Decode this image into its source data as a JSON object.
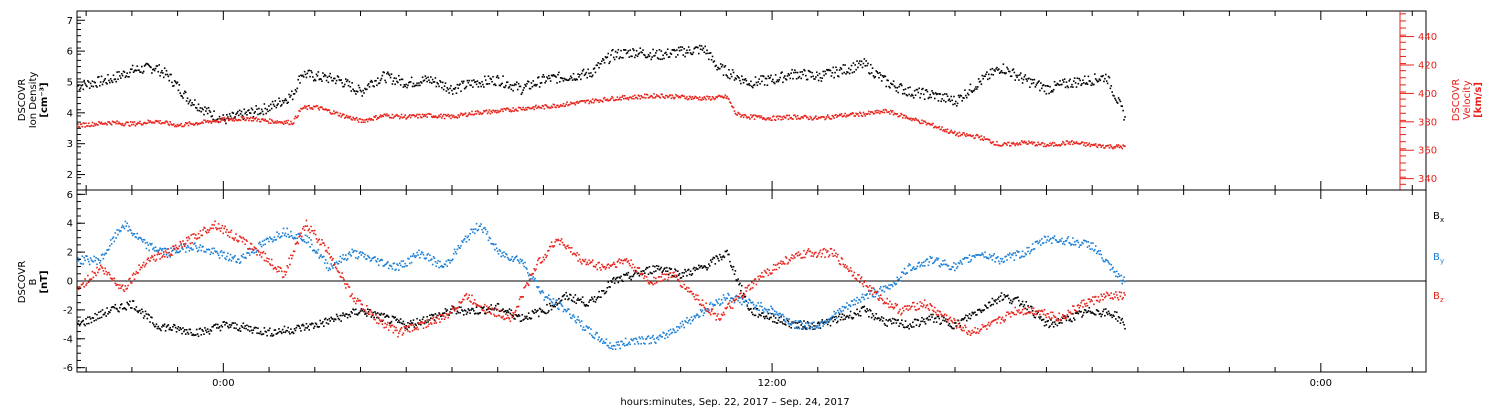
{
  "xaxis": {
    "title": "hours:minutes, Sep. 22, 2017 – Sep. 24, 2017",
    "range_hours": [
      -3.2,
      26.3
    ],
    "major_ticks": [
      {
        "hour": 0,
        "label": "0:00"
      },
      {
        "hour": 12,
        "label": "12:00"
      },
      {
        "hour": 24,
        "label": "0:00"
      }
    ],
    "minor_tick_step_hours": 1
  },
  "colors": {
    "black": "#000000",
    "blue": "#1c7fd6",
    "red": "#e8231b"
  },
  "chart_data": [
    {
      "type": "scatter",
      "panel": "top",
      "ylabel_lines": [
        "DSCOVR",
        "Ion Density"
      ],
      "yunit": "[cm⁻³]",
      "ylim": [
        1.5,
        7.3
      ],
      "yticks": [
        2,
        3,
        4,
        5,
        6,
        7
      ],
      "y2label_lines": [
        "DSCOVR",
        "Velocity"
      ],
      "y2unit": "[km/s]",
      "y2lim": [
        332,
        458
      ],
      "y2ticks": [
        340,
        360,
        380,
        400,
        420,
        440
      ],
      "series": [
        {
          "axis": "left",
          "color": "#000000",
          "x": [
            -3.2,
            -2.5,
            -2.0,
            -1.5,
            -1.2,
            -0.8,
            -0.3,
            0.0,
            0.5,
            1.0,
            1.5,
            1.7,
            2.0,
            2.5,
            3.0,
            3.2,
            3.5,
            4.0,
            4.5,
            5.0,
            5.5,
            6.0,
            6.5,
            7.0,
            7.5,
            8.0,
            8.5,
            9.0,
            9.5,
            10.0,
            10.5,
            10.8,
            11.2,
            11.5,
            12.0,
            12.5,
            13.0,
            13.5,
            14.0,
            14.5,
            15.0,
            15.5,
            16.0,
            16.5,
            17.0,
            17.5,
            18.0,
            18.5,
            19.0,
            19.3,
            19.7
          ],
          "y": [
            4.9,
            5.1,
            5.4,
            5.5,
            5.2,
            4.5,
            4.0,
            3.8,
            4.0,
            4.2,
            4.6,
            5.3,
            5.2,
            5.1,
            4.7,
            5.0,
            5.2,
            5.0,
            5.1,
            4.8,
            5.0,
            5.1,
            4.8,
            5.1,
            5.2,
            5.3,
            5.9,
            6.0,
            5.9,
            6.0,
            6.1,
            5.5,
            5.2,
            5.0,
            5.1,
            5.3,
            5.2,
            5.4,
            5.6,
            5.0,
            4.7,
            4.6,
            4.4,
            5.0,
            5.5,
            5.1,
            4.8,
            5.0,
            5.1,
            5.2,
            3.9
          ]
        },
        {
          "axis": "right",
          "color": "#e8231b",
          "x": [
            -3.2,
            -2.5,
            -2.0,
            -1.5,
            -1.0,
            -0.5,
            0.0,
            0.5,
            1.0,
            1.5,
            1.7,
            2.0,
            2.5,
            3.0,
            3.5,
            4.0,
            4.5,
            5.0,
            5.5,
            6.0,
            6.5,
            7.0,
            7.5,
            8.0,
            8.5,
            9.0,
            9.5,
            10.0,
            10.5,
            11.0,
            11.2,
            11.5,
            12.0,
            12.5,
            13.0,
            13.5,
            14.0,
            14.5,
            15.0,
            15.5,
            16.0,
            16.5,
            17.0,
            17.5,
            18.0,
            18.5,
            19.0,
            19.5,
            19.7
          ],
          "y": [
            378,
            380,
            379,
            381,
            378,
            380,
            382,
            383,
            381,
            380,
            390,
            391,
            386,
            381,
            385,
            384,
            385,
            384,
            387,
            388,
            390,
            391,
            393,
            395,
            397,
            398,
            399,
            398,
            397,
            398,
            386,
            384,
            383,
            384,
            383,
            385,
            386,
            388,
            383,
            378,
            372,
            370,
            364,
            366,
            364,
            366,
            364,
            363,
            363
          ]
        }
      ]
    },
    {
      "type": "scatter",
      "panel": "bottom",
      "ylabel_lines": [
        "DSCOVR",
        "B"
      ],
      "yunit": "[nT]",
      "ylim": [
        -6.3,
        6.3
      ],
      "yticks": [
        -6,
        -4,
        -2,
        0,
        2,
        4,
        6
      ],
      "zero_line": true,
      "legend_position": "right",
      "series": [
        {
          "name": "B",
          "subscript": "x",
          "color": "#000000",
          "x": [
            -3.2,
            -2.5,
            -2.0,
            -1.5,
            -1.0,
            -0.5,
            0.0,
            0.5,
            1.0,
            1.5,
            2.0,
            2.5,
            3.0,
            3.5,
            4.0,
            4.5,
            5.0,
            5.5,
            6.0,
            6.5,
            7.0,
            7.5,
            8.0,
            8.5,
            9.0,
            9.5,
            10.0,
            10.5,
            11.0,
            11.5,
            12.0,
            12.5,
            13.0,
            13.5,
            14.0,
            14.5,
            15.0,
            15.5,
            16.0,
            16.5,
            17.0,
            17.5,
            18.0,
            18.5,
            19.0,
            19.5,
            19.7
          ],
          "y": [
            -3.0,
            -2.0,
            -1.5,
            -3.0,
            -3.3,
            -3.5,
            -3.0,
            -3.2,
            -3.5,
            -3.3,
            -3.0,
            -2.5,
            -2.0,
            -2.5,
            -3.0,
            -2.5,
            -2.0,
            -2.0,
            -1.8,
            -2.5,
            -2.0,
            -1.0,
            -1.5,
            0.0,
            0.5,
            1.0,
            0.5,
            1.0,
            2.0,
            -2.0,
            -2.5,
            -3.0,
            -3.0,
            -2.5,
            -2.0,
            -2.8,
            -3.0,
            -2.5,
            -3.0,
            -2.0,
            -1.0,
            -1.5,
            -3.0,
            -2.5,
            -2.0,
            -2.3,
            -3.0
          ]
        },
        {
          "name": "B",
          "subscript": "y",
          "color": "#1c7fd6",
          "x": [
            -3.2,
            -2.7,
            -2.2,
            -1.7,
            -1.2,
            -0.7,
            -0.2,
            0.3,
            0.8,
            1.3,
            1.8,
            2.3,
            2.8,
            3.3,
            3.8,
            4.3,
            4.8,
            5.3,
            5.6,
            6.0,
            6.5,
            7.0,
            7.5,
            8.0,
            8.5,
            9.0,
            9.5,
            10.0,
            10.5,
            11.0,
            11.5,
            12.0,
            12.5,
            13.0,
            13.5,
            14.0,
            14.5,
            15.0,
            15.5,
            16.0,
            16.5,
            17.0,
            17.5,
            18.0,
            18.5,
            19.0,
            19.5,
            19.7
          ],
          "y": [
            1.5,
            1.5,
            4.0,
            2.5,
            2.0,
            2.5,
            2.0,
            1.5,
            2.5,
            3.5,
            3.0,
            1.0,
            2.0,
            1.5,
            1.0,
            2.0,
            1.0,
            3.0,
            4.0,
            2.0,
            1.5,
            -1.0,
            -2.0,
            -3.5,
            -4.5,
            -4.0,
            -4.0,
            -3.0,
            -2.0,
            -1.0,
            -1.5,
            -2.0,
            -3.0,
            -3.0,
            -2.0,
            -1.0,
            -0.5,
            1.0,
            1.5,
            1.0,
            2.0,
            1.5,
            2.0,
            3.0,
            2.8,
            2.5,
            0.5,
            0.0
          ]
        },
        {
          "name": "B",
          "subscript": "z",
          "color": "#e8231b",
          "x": [
            -3.2,
            -2.7,
            -2.2,
            -1.7,
            -1.2,
            -0.7,
            -0.2,
            0.3,
            0.8,
            1.3,
            1.8,
            2.3,
            2.8,
            3.3,
            3.8,
            4.3,
            4.8,
            5.3,
            5.8,
            6.3,
            6.8,
            7.3,
            7.8,
            8.3,
            8.8,
            9.3,
            9.8,
            10.3,
            10.8,
            11.3,
            11.8,
            12.3,
            12.8,
            13.3,
            13.8,
            14.3,
            14.8,
            15.3,
            15.8,
            16.3,
            16.8,
            17.3,
            17.8,
            18.3,
            18.8,
            19.3,
            19.7
          ],
          "y": [
            -0.5,
            1.0,
            -0.5,
            1.5,
            2.0,
            3.0,
            4.0,
            3.0,
            2.0,
            0.5,
            4.0,
            2.0,
            -1.0,
            -2.5,
            -3.5,
            -3.0,
            -2.5,
            -1.0,
            -2.0,
            -2.5,
            1.0,
            3.0,
            1.5,
            1.0,
            1.5,
            0.0,
            0.5,
            -1.0,
            -2.5,
            -1.0,
            0.5,
            1.5,
            2.0,
            2.0,
            0.5,
            -1.0,
            -2.0,
            -1.5,
            -2.5,
            -3.5,
            -3.0,
            -2.0,
            -2.0,
            -2.5,
            -1.5,
            -1.0,
            -1.0
          ]
        }
      ]
    }
  ]
}
